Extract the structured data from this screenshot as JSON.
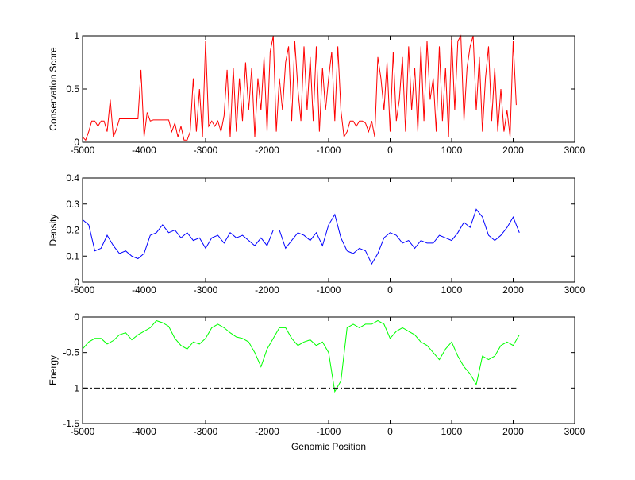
{
  "chart_data": [
    {
      "type": "line",
      "ylabel": "Conservation Score",
      "xlabel": "",
      "xlim": [
        -5000,
        3000
      ],
      "ylim": [
        0,
        1
      ],
      "xticks": [
        -5000,
        -4000,
        -3000,
        -2000,
        -1000,
        0,
        1000,
        2000,
        3000
      ],
      "yticks": [
        0,
        0.5,
        1
      ],
      "color": "#ff0000",
      "series": [
        {
          "name": "conservation",
          "x_start": -5000,
          "x_step": 50,
          "values": [
            0.05,
            0.02,
            0.1,
            0.2,
            0.2,
            0.15,
            0.2,
            0.2,
            0.1,
            0.4,
            0.05,
            0.12,
            0.22,
            0.22,
            0.22,
            0.22,
            0.22,
            0.22,
            0.22,
            0.68,
            0.05,
            0.28,
            0.2,
            0.21,
            0.21,
            0.21,
            0.21,
            0.21,
            0.21,
            0.1,
            0.18,
            0.05,
            0.15,
            0.02,
            0.02,
            0.1,
            0.6,
            0.1,
            0.5,
            0.05,
            0.95,
            0.15,
            0.2,
            0.15,
            0.2,
            0.1,
            0.25,
            0.68,
            0.05,
            0.7,
            0.1,
            0.6,
            0.2,
            0.75,
            0.3,
            0.7,
            0.05,
            0.6,
            0.3,
            0.8,
            0.1,
            0.85,
            1.0,
            0.1,
            0.6,
            0.3,
            0.75,
            0.9,
            0.2,
            0.95,
            0.5,
            0.2,
            0.9,
            0.3,
            0.8,
            0.2,
            0.9,
            0.1,
            0.7,
            0.3,
            0.6,
            0.85,
            0.2,
            0.9,
            0.3,
            0.05,
            0.1,
            0.2,
            0.2,
            0.15,
            0.2,
            0.2,
            0.18,
            0.1,
            0.2,
            0.05,
            0.8,
            0.6,
            0.3,
            0.75,
            0.1,
            0.85,
            0.2,
            0.4,
            0.8,
            0.1,
            0.9,
            0.3,
            0.7,
            0.1,
            0.9,
            0.2,
            0.95,
            0.4,
            0.6,
            0.1,
            0.9,
            0.2,
            0.7,
            0.05,
            1.0,
            0.3,
            0.95,
            1.0,
            0.2,
            0.7,
            0.9,
            1.0,
            0.3,
            0.8,
            0.1,
            0.6,
            0.9,
            0.2,
            0.7,
            0.1,
            0.5,
            0.1,
            0.3,
            0.05,
            0.95,
            0.35
          ]
        }
      ]
    },
    {
      "type": "line",
      "ylabel": "Density",
      "xlabel": "",
      "xlim": [
        -5000,
        3000
      ],
      "ylim": [
        0,
        0.4
      ],
      "xticks": [
        -5000,
        -4000,
        -3000,
        -2000,
        -1000,
        0,
        1000,
        2000,
        3000
      ],
      "yticks": [
        0,
        0.1,
        0.2,
        0.3,
        0.4
      ],
      "color": "#0000ff",
      "series": [
        {
          "name": "density",
          "x_start": -5000,
          "x_step": 100,
          "values": [
            0.24,
            0.22,
            0.12,
            0.13,
            0.18,
            0.14,
            0.11,
            0.12,
            0.1,
            0.09,
            0.11,
            0.18,
            0.19,
            0.22,
            0.19,
            0.2,
            0.17,
            0.19,
            0.16,
            0.17,
            0.13,
            0.17,
            0.18,
            0.15,
            0.19,
            0.17,
            0.18,
            0.16,
            0.14,
            0.17,
            0.14,
            0.2,
            0.2,
            0.13,
            0.16,
            0.19,
            0.18,
            0.16,
            0.19,
            0.14,
            0.22,
            0.26,
            0.17,
            0.12,
            0.11,
            0.13,
            0.12,
            0.07,
            0.11,
            0.17,
            0.19,
            0.18,
            0.15,
            0.16,
            0.13,
            0.16,
            0.15,
            0.15,
            0.18,
            0.17,
            0.16,
            0.19,
            0.23,
            0.21,
            0.28,
            0.25,
            0.18,
            0.16,
            0.18,
            0.21,
            0.25,
            0.19
          ]
        }
      ]
    },
    {
      "type": "line",
      "ylabel": "Energy",
      "xlabel": "Genomic Position",
      "xlim": [
        -5000,
        3000
      ],
      "ylim": [
        -1.5,
        0
      ],
      "xticks": [
        -5000,
        -4000,
        -3000,
        -2000,
        -1000,
        0,
        1000,
        2000,
        3000
      ],
      "yticks": [
        -1.5,
        -1,
        -0.5,
        0
      ],
      "color": "#00ff00",
      "threshold": {
        "y": -1,
        "x_range": [
          -5000,
          2050
        ],
        "style": "dash-dot",
        "color": "#000000"
      },
      "series": [
        {
          "name": "energy",
          "x_start": -5000,
          "x_step": 100,
          "values": [
            -0.45,
            -0.35,
            -0.3,
            -0.3,
            -0.38,
            -0.33,
            -0.25,
            -0.22,
            -0.32,
            -0.25,
            -0.2,
            -0.15,
            -0.05,
            -0.08,
            -0.13,
            -0.3,
            -0.4,
            -0.45,
            -0.35,
            -0.38,
            -0.3,
            -0.15,
            -0.1,
            -0.15,
            -0.22,
            -0.28,
            -0.3,
            -0.35,
            -0.5,
            -0.7,
            -0.45,
            -0.3,
            -0.15,
            -0.15,
            -0.3,
            -0.4,
            -0.35,
            -0.32,
            -0.4,
            -0.35,
            -0.5,
            -1.05,
            -0.9,
            -0.15,
            -0.1,
            -0.15,
            -0.1,
            -0.1,
            -0.05,
            -0.1,
            -0.3,
            -0.2,
            -0.15,
            -0.2,
            -0.25,
            -0.35,
            -0.4,
            -0.5,
            -0.6,
            -0.45,
            -0.35,
            -0.55,
            -0.7,
            -0.8,
            -0.95,
            -0.55,
            -0.6,
            -0.55,
            -0.4,
            -0.35,
            -0.4,
            -0.25
          ]
        }
      ]
    }
  ]
}
